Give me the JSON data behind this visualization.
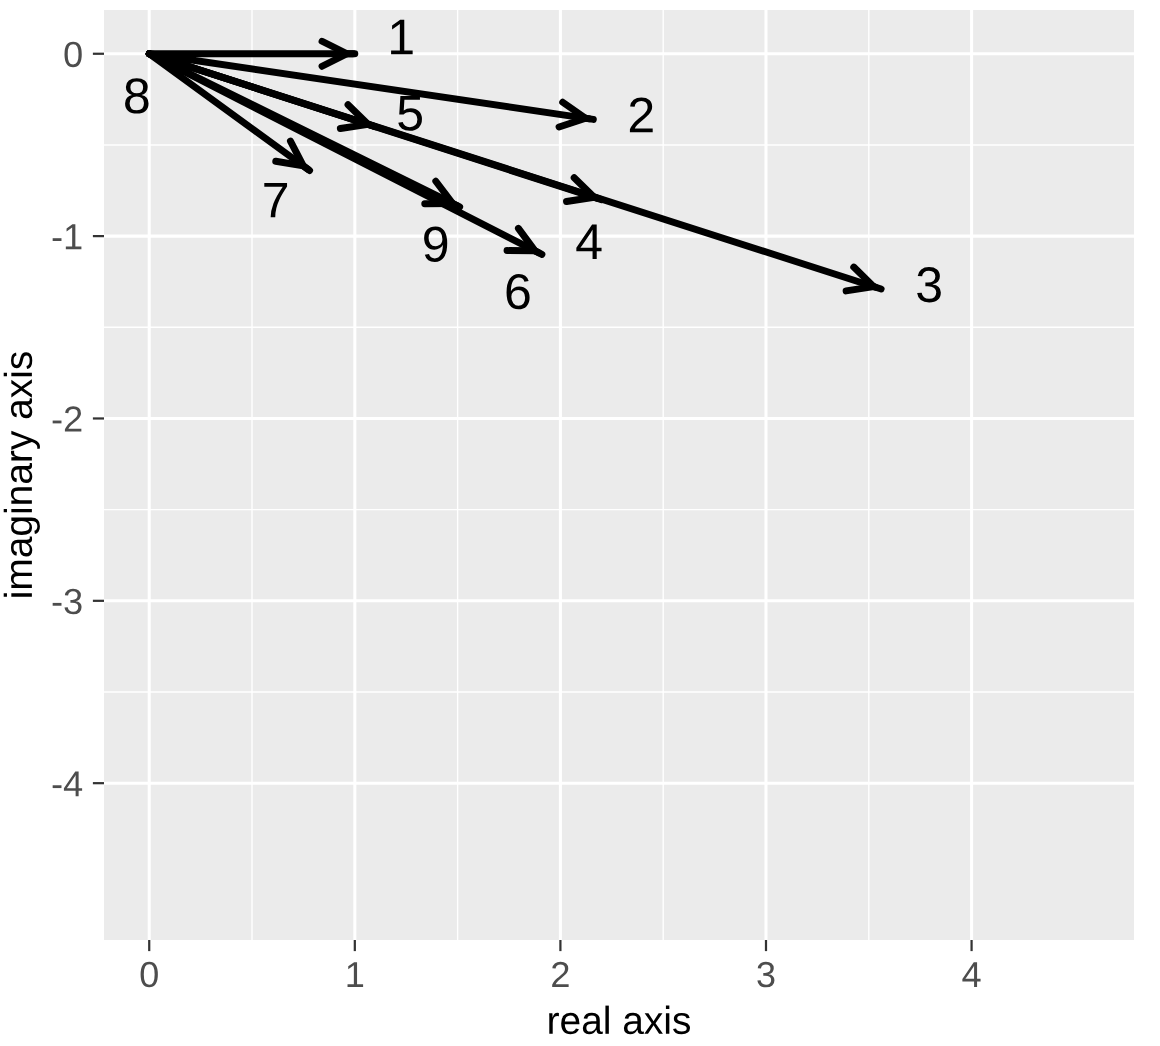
{
  "chart_data": {
    "type": "line",
    "xlabel": "real axis",
    "ylabel": "imaginary axis",
    "xlim": [
      -0.22,
      4.79
    ],
    "ylim": [
      -4.86,
      0.24
    ],
    "xticks": [
      0,
      1,
      2,
      3,
      4
    ],
    "yticks": [
      -4,
      -3,
      -2,
      -1,
      0
    ],
    "grid": true,
    "series": [
      {
        "color": "#000000",
        "x": [
          0,
          1.0
        ],
        "values": [
          0,
          0.0
        ]
      },
      {
        "color": "#000000",
        "x": [
          0,
          2.16
        ],
        "values": [
          0,
          -0.36
        ]
      },
      {
        "color": "#000000",
        "x": [
          0,
          3.56
        ],
        "values": [
          0,
          -1.29
        ]
      },
      {
        "color": "#000000",
        "x": [
          0,
          2.2
        ],
        "values": [
          0,
          -0.8
        ]
      },
      {
        "color": "#000000",
        "x": [
          0,
          1.1
        ],
        "values": [
          0,
          -0.4
        ]
      },
      {
        "color": "#000000",
        "x": [
          0,
          1.91
        ],
        "values": [
          0,
          -1.1
        ]
      },
      {
        "color": "#000000",
        "x": [
          0,
          0.78
        ],
        "values": [
          0,
          -0.64
        ]
      },
      {
        "color": "#000000",
        "x": [
          0,
          1.51
        ],
        "values": [
          0,
          -0.84
        ]
      }
    ],
    "annotations": [
      {
        "text": "1",
        "x": 1.0,
        "y": 0.0
      },
      {
        "text": "2",
        "x": 2.16,
        "y": -0.36
      },
      {
        "text": "3",
        "x": 3.56,
        "y": -1.29
      },
      {
        "text": "4",
        "x": 2.2,
        "y": -0.8
      },
      {
        "text": "5",
        "x": 1.1,
        "y": -0.4
      },
      {
        "text": "6",
        "x": 1.91,
        "y": -1.1
      },
      {
        "text": "7",
        "x": 0.78,
        "y": -0.64
      },
      {
        "text": "8",
        "x": 0.0,
        "y": 0.0
      },
      {
        "text": "9",
        "x": 1.51,
        "y": -0.84
      }
    ]
  }
}
